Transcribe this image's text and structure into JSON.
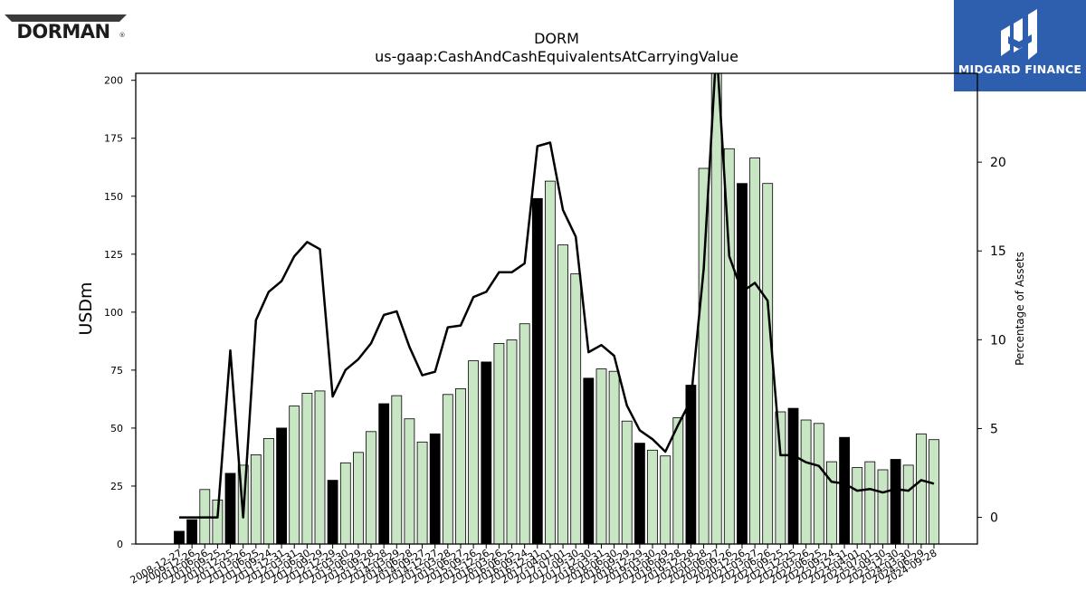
{
  "header": {
    "left_logo_text": "DORMAN",
    "right_logo_text": "MIDGARD FINANCE",
    "right_logo_bg": "#2d5fae"
  },
  "chart_data": {
    "type": "bar",
    "title": "DORM",
    "subtitle": "us-gaap:CashAndCashEquivalentsAtCarryingValue",
    "ylabel": "USDm",
    "y2label": "Percentage of Assets",
    "ylim": [
      0,
      203
    ],
    "y2lim": [
      -1.5,
      25
    ],
    "yticks": [
      0,
      25,
      50,
      75,
      100,
      125,
      150,
      175,
      200
    ],
    "y2ticks": [
      0,
      5,
      10,
      15,
      20
    ],
    "bar_colors": {
      "annual": "#000000",
      "quarterly": "#c8e6c4"
    },
    "line_color": "#000000",
    "categories": [
      "2008-12-27",
      "2009-12-26",
      "2010-06-26",
      "2010-09-25",
      "2010-12-25",
      "2011-03-26",
      "2011-06-25",
      "2011-09-24",
      "2011-12-31",
      "2012-03-31",
      "2012-06-30",
      "2012-09-29",
      "2012-12-29",
      "2013-03-30",
      "2013-06-29",
      "2013-09-28",
      "2013-12-28",
      "2014-03-29",
      "2014-06-28",
      "2014-09-27",
      "2014-12-27",
      "2015-03-28",
      "2015-06-27",
      "2015-09-26",
      "2015-12-26",
      "2016-03-26",
      "2016-06-25",
      "2016-09-24",
      "2016-12-31",
      "2017-04-01",
      "2017-07-01",
      "2017-09-30",
      "2017-12-30",
      "2018-03-31",
      "2018-06-30",
      "2018-09-29",
      "2018-12-29",
      "2019-03-30",
      "2019-06-29",
      "2019-09-28",
      "2019-12-28",
      "2020-03-28",
      "2020-06-27",
      "2020-09-26",
      "2020-12-26",
      "2021-03-27",
      "2021-06-26",
      "2021-09-25",
      "2021-12-25",
      "2022-03-26",
      "2022-06-25",
      "2022-09-24",
      "2022-12-31",
      "2023-04-01",
      "2023-07-01",
      "2023-09-30",
      "2023-12-30",
      "2024-03-30",
      "2024-06-29",
      "2024-09-28"
    ],
    "series": [
      {
        "values": [
          5.5,
          10.5,
          23.5,
          19,
          30.5,
          34,
          38.5,
          45.5,
          50,
          59.5,
          65,
          66,
          27.5,
          35,
          39.5,
          48.5,
          60.5,
          64,
          54,
          44,
          47.5,
          64.5,
          67,
          79,
          78.5,
          86.5,
          88,
          95,
          149,
          156.5,
          129,
          116.5,
          71.5,
          75.5,
          74.5,
          53,
          43.5,
          40.5,
          38,
          54.5,
          68.5,
          162,
          218,
          170.5,
          155.5,
          166.5,
          155.5,
          57,
          58.5,
          53.5,
          52,
          35.5,
          46,
          33,
          35.5,
          32,
          36.5,
          34,
          47.5,
          45
        ],
        "annual": [
          true,
          true,
          false,
          false,
          true,
          false,
          false,
          false,
          true,
          false,
          false,
          false,
          true,
          false,
          false,
          false,
          true,
          false,
          false,
          false,
          true,
          false,
          false,
          false,
          true,
          false,
          false,
          false,
          true,
          false,
          false,
          false,
          true,
          false,
          false,
          false,
          true,
          false,
          false,
          false,
          true,
          false,
          false,
          false,
          true,
          false,
          false,
          false,
          true,
          false,
          false,
          false,
          true,
          false,
          false,
          false,
          true,
          false,
          false,
          false
        ]
      },
      {
        "values": [
          0,
          0,
          0,
          0,
          9.4,
          0,
          11.1,
          12.7,
          13.3,
          14.7,
          15.5,
          15.1,
          6.8,
          8.3,
          8.9,
          9.8,
          11.4,
          11.6,
          9.6,
          8,
          8.2,
          10.7,
          10.8,
          12.4,
          12.7,
          13.8,
          13.8,
          14.3,
          20.9,
          21.1,
          17.3,
          15.8,
          9.3,
          9.7,
          9.1,
          6.3,
          4.9,
          4.4,
          3.7,
          5.2,
          6.6,
          14,
          26.5,
          14.7,
          12.7,
          13.2,
          12.2,
          3.5,
          3.5,
          3.1,
          2.9,
          2,
          1.9,
          1.5,
          1.6,
          1.4,
          1.6,
          1.5,
          2.1,
          1.9
        ]
      }
    ]
  }
}
